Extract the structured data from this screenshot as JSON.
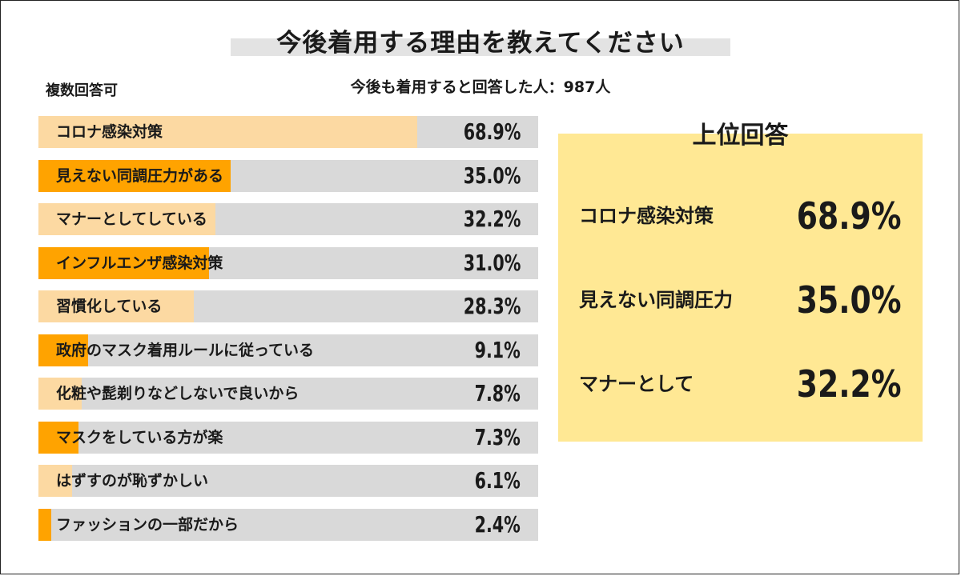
{
  "header": {
    "title": "今後着用する理由を教えてください",
    "note": "複数回答可",
    "respondents": "今後も着用すると回答した人：987人"
  },
  "colors": {
    "fill_light": "#fcd9a2",
    "fill_strong": "#ffa300",
    "track": "#d9d9d9",
    "top_box": "#ffe894"
  },
  "chart_data": {
    "type": "bar",
    "orientation": "horizontal",
    "title": "今後着用する理由を教えてください",
    "xlim": [
      0,
      100
    ],
    "categories": [
      "コロナ感染対策",
      "見えない同調圧力がある",
      "マナーとしてしている",
      "インフルエンザ感染対策",
      "習慣化している",
      "政府のマスク着用ルールに従っている",
      "化粧や髭剃りなどしないで良いから",
      "マスクをしている方が楽",
      "はずすのが恥ずかしい",
      "ファッションの一部だから"
    ],
    "values": [
      68.9,
      35.0,
      32.2,
      31.0,
      28.3,
      9.1,
      7.8,
      7.3,
      6.1,
      2.4
    ],
    "value_labels": [
      "68.9%",
      "35.0%",
      "32.2%",
      "31.0%",
      "28.3%",
      "9.1%",
      "7.8%",
      "7.3%",
      "6.1%",
      "2.4%"
    ]
  },
  "top_answers": {
    "title": "上位回答",
    "items": [
      {
        "label": "コロナ感染対策",
        "value": "68.9%"
      },
      {
        "label": "見えない同調圧力",
        "value": "35.0%"
      },
      {
        "label": "マナーとして",
        "value": "32.2%"
      }
    ]
  }
}
